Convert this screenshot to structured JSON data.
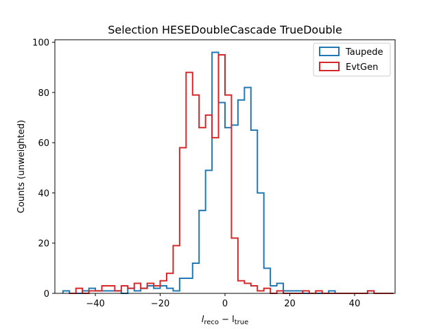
{
  "chart_data": {
    "type": "histogram-step",
    "title": "Selection HESEDoubleCascade TrueDouble",
    "xlabel_main": "l",
    "xlabel_sub1": "reco",
    "xlabel_mid": " − l",
    "xlabel_sub2": "true",
    "ylabel": "Counts (unweighted)",
    "xlim": [
      -52.5,
      52.5
    ],
    "ylim": [
      0,
      101
    ],
    "xticks": [
      -40,
      -20,
      0,
      20,
      40
    ],
    "xtick_labels": [
      "−40",
      "−20",
      "0",
      "20",
      "40"
    ],
    "yticks": [
      0,
      20,
      40,
      60,
      80,
      100
    ],
    "ytick_labels": [
      "0",
      "20",
      "40",
      "60",
      "80",
      "100"
    ],
    "bin_edges_start": -50,
    "bin_width": 2,
    "legend_position": "top-right",
    "series": [
      {
        "name": "Taupede",
        "color": "#1f77b4",
        "values": [
          1,
          0,
          0,
          1,
          2,
          1,
          1,
          1,
          1,
          0,
          2,
          1,
          2,
          3,
          2,
          3,
          2,
          1,
          6,
          6,
          12,
          33,
          49,
          96,
          76,
          66,
          67,
          77,
          82,
          65,
          40,
          10,
          3,
          4,
          1,
          1,
          1,
          0,
          0,
          0,
          0,
          1,
          0,
          0,
          0,
          0,
          0,
          1,
          0,
          0
        ]
      },
      {
        "name": "EvtGen",
        "color": "#d62728",
        "values": [
          0,
          2,
          0,
          1,
          1,
          3,
          3,
          1,
          3,
          2,
          4,
          2,
          4,
          3,
          5,
          8,
          19,
          58,
          88,
          79,
          66,
          71,
          62,
          95,
          79,
          22,
          5,
          4,
          3,
          1,
          2,
          0,
          1,
          0,
          0,
          0,
          1,
          0,
          1,
          0,
          0,
          0,
          0,
          0,
          0,
          0,
          1,
          0,
          0,
          0
        ],
        "offset_bins": 1
      }
    ]
  }
}
